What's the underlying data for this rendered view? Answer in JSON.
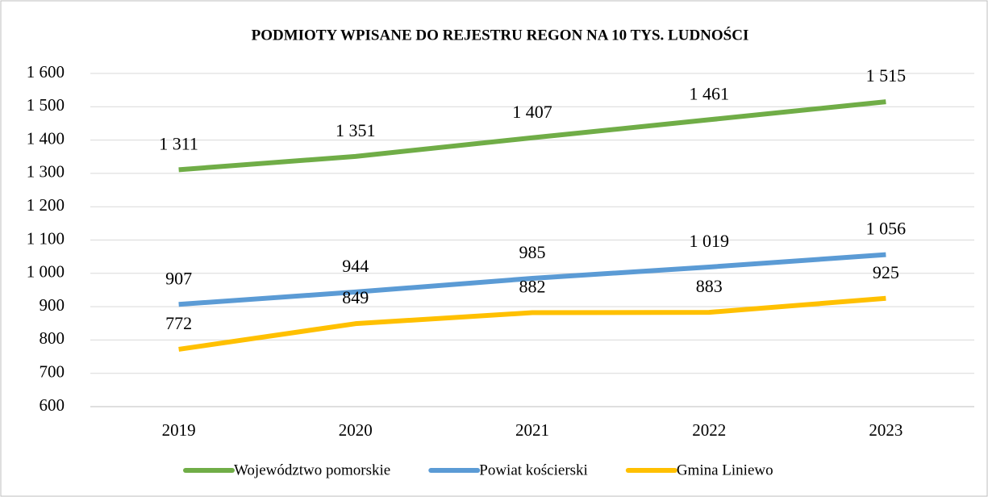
{
  "chart_data": {
    "type": "line",
    "title": "PODMIOTY WPISANE DO REJESTRU REGON NA 10 TYS. LUDNOŚCI",
    "categories": [
      "2019",
      "2020",
      "2021",
      "2022",
      "2023"
    ],
    "series": [
      {
        "name": "Województwo pomorskie",
        "color": "#70ad47",
        "values": [
          1311,
          1351,
          1407,
          1461,
          1515
        ],
        "value_labels": [
          "1 311",
          "1 351",
          "1 407",
          "1 461",
          "1 515"
        ]
      },
      {
        "name": "Powiat kościerski",
        "color": "#5b9bd5",
        "values": [
          907,
          944,
          985,
          1019,
          1056
        ],
        "value_labels": [
          "907",
          "944",
          "985",
          "1 019",
          "1 056"
        ]
      },
      {
        "name": "Gmina Liniewo",
        "color": "#ffc000",
        "values": [
          772,
          849,
          882,
          883,
          925
        ]
      }
    ],
    "ylim": [
      600,
      1600
    ],
    "yticks": [
      600,
      700,
      800,
      900,
      {
        "value": 1000,
        "label": "1 000"
      },
      {
        "value": 1100,
        "label": "1 100"
      },
      {
        "value": 1200,
        "label": "1 200"
      },
      {
        "value": 1300,
        "label": "1 300"
      },
      {
        "value": 1400,
        "label": "1 400"
      },
      {
        "value": 1500,
        "label": "1 500"
      },
      {
        "value": 1600,
        "label": "1 600"
      }
    ],
    "grid": true,
    "legend": "bottom"
  }
}
